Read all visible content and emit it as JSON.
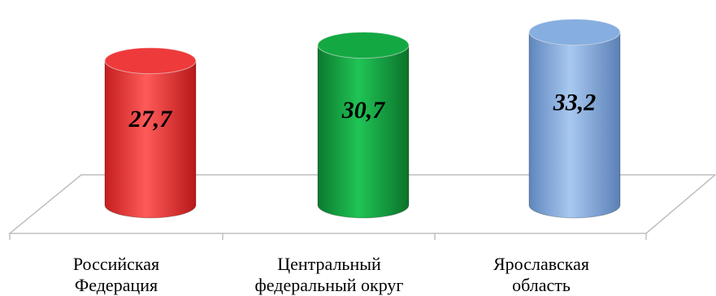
{
  "chart_data": {
    "type": "bar",
    "style": "3d-cylinder",
    "categories": [
      "Российская\nФедерация",
      "Центральный\nфедеральный округ",
      "Ярославская\nобласть"
    ],
    "values": [
      27.7,
      30.7,
      33.2
    ],
    "data_labels": [
      "27,7",
      "30,7",
      "33,2"
    ],
    "colors": [
      "#ee3a3a",
      "#14a843",
      "#86aee0"
    ],
    "title": "",
    "xlabel": "",
    "ylabel": "",
    "grid": false,
    "legend": "none"
  }
}
